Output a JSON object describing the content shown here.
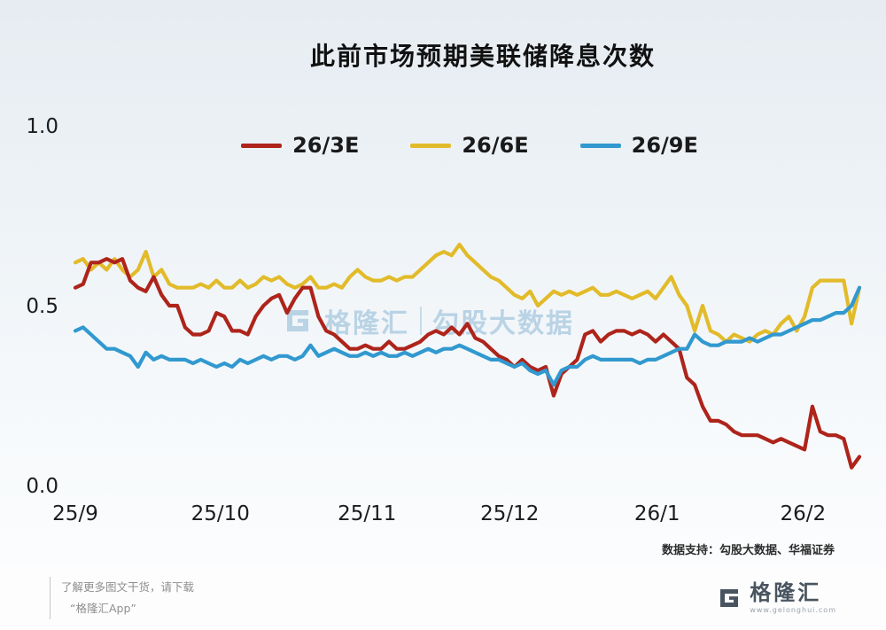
{
  "title": "此前市场预期美联储降息次数",
  "watermark": {
    "brand": "格隆汇",
    "text": "勾股大数据"
  },
  "data_support": "数据支持：勾股大数据、华福证券",
  "footer": {
    "promo_line1": "了解更多图文干货，请下载",
    "promo_line2": "“格隆汇App”",
    "brand": "格隆汇",
    "brand_url": "www.gelonghui.com"
  },
  "chart_data": {
    "type": "line",
    "title": "此前市场预期美联储降息次数",
    "xlabel": "",
    "ylabel": "",
    "ylim": [
      0,
      1
    ],
    "grid": false,
    "legend_position": "top-center",
    "x_tick_labels": [
      "25/9",
      "25/10",
      "25/11",
      "25/12",
      "26/1",
      "26/2"
    ],
    "x_tick_pos": [
      0,
      0.185,
      0.372,
      0.554,
      0.742,
      0.928
    ],
    "y_ticks": [
      0.0,
      0.5,
      1.0
    ],
    "series": [
      {
        "name": "26/3E",
        "color": "#ae241b",
        "values": [
          0.55,
          0.56,
          0.62,
          0.62,
          0.63,
          0.62,
          0.63,
          0.57,
          0.55,
          0.54,
          0.58,
          0.53,
          0.5,
          0.5,
          0.44,
          0.42,
          0.42,
          0.43,
          0.48,
          0.47,
          0.43,
          0.43,
          0.42,
          0.47,
          0.5,
          0.52,
          0.53,
          0.48,
          0.52,
          0.55,
          0.55,
          0.47,
          0.43,
          0.42,
          0.4,
          0.38,
          0.38,
          0.39,
          0.38,
          0.38,
          0.4,
          0.38,
          0.38,
          0.39,
          0.4,
          0.42,
          0.43,
          0.42,
          0.44,
          0.42,
          0.45,
          0.41,
          0.4,
          0.38,
          0.36,
          0.35,
          0.33,
          0.35,
          0.33,
          0.32,
          0.33,
          0.25,
          0.31,
          0.33,
          0.35,
          0.42,
          0.43,
          0.4,
          0.42,
          0.43,
          0.43,
          0.42,
          0.43,
          0.42,
          0.4,
          0.42,
          0.4,
          0.38,
          0.3,
          0.28,
          0.22,
          0.18,
          0.18,
          0.17,
          0.15,
          0.14,
          0.14,
          0.14,
          0.13,
          0.12,
          0.13,
          0.12,
          0.11,
          0.1,
          0.22,
          0.15,
          0.14,
          0.14,
          0.13,
          0.05,
          0.08
        ]
      },
      {
        "name": "26/6E",
        "color": "#e2bb2a",
        "values": [
          0.62,
          0.63,
          0.6,
          0.62,
          0.6,
          0.63,
          0.6,
          0.58,
          0.6,
          0.65,
          0.58,
          0.6,
          0.56,
          0.55,
          0.55,
          0.55,
          0.56,
          0.55,
          0.57,
          0.55,
          0.55,
          0.57,
          0.55,
          0.56,
          0.58,
          0.57,
          0.58,
          0.56,
          0.55,
          0.56,
          0.58,
          0.55,
          0.55,
          0.56,
          0.55,
          0.58,
          0.6,
          0.58,
          0.57,
          0.57,
          0.58,
          0.57,
          0.58,
          0.58,
          0.6,
          0.62,
          0.64,
          0.65,
          0.64,
          0.67,
          0.64,
          0.62,
          0.6,
          0.58,
          0.57,
          0.55,
          0.53,
          0.52,
          0.54,
          0.5,
          0.52,
          0.54,
          0.53,
          0.54,
          0.53,
          0.54,
          0.55,
          0.53,
          0.53,
          0.54,
          0.53,
          0.52,
          0.53,
          0.54,
          0.52,
          0.55,
          0.58,
          0.53,
          0.5,
          0.43,
          0.5,
          0.43,
          0.42,
          0.4,
          0.42,
          0.41,
          0.4,
          0.42,
          0.43,
          0.42,
          0.45,
          0.47,
          0.43,
          0.47,
          0.55,
          0.57,
          0.57,
          0.57,
          0.57,
          0.45,
          0.55
        ]
      },
      {
        "name": "26/9E",
        "color": "#3199cf",
        "values": [
          0.43,
          0.44,
          0.42,
          0.4,
          0.38,
          0.38,
          0.37,
          0.36,
          0.33,
          0.37,
          0.35,
          0.36,
          0.35,
          0.35,
          0.35,
          0.34,
          0.35,
          0.34,
          0.33,
          0.34,
          0.33,
          0.35,
          0.34,
          0.35,
          0.36,
          0.35,
          0.36,
          0.36,
          0.35,
          0.36,
          0.39,
          0.36,
          0.37,
          0.38,
          0.37,
          0.36,
          0.36,
          0.37,
          0.36,
          0.37,
          0.36,
          0.36,
          0.37,
          0.36,
          0.37,
          0.38,
          0.37,
          0.38,
          0.38,
          0.39,
          0.38,
          0.37,
          0.36,
          0.35,
          0.35,
          0.34,
          0.33,
          0.34,
          0.32,
          0.31,
          0.32,
          0.28,
          0.32,
          0.33,
          0.33,
          0.35,
          0.36,
          0.35,
          0.35,
          0.35,
          0.35,
          0.35,
          0.34,
          0.35,
          0.35,
          0.36,
          0.37,
          0.38,
          0.38,
          0.42,
          0.4,
          0.39,
          0.39,
          0.4,
          0.4,
          0.4,
          0.41,
          0.4,
          0.41,
          0.42,
          0.42,
          0.43,
          0.44,
          0.45,
          0.46,
          0.46,
          0.47,
          0.48,
          0.48,
          0.5,
          0.55
        ]
      }
    ]
  }
}
